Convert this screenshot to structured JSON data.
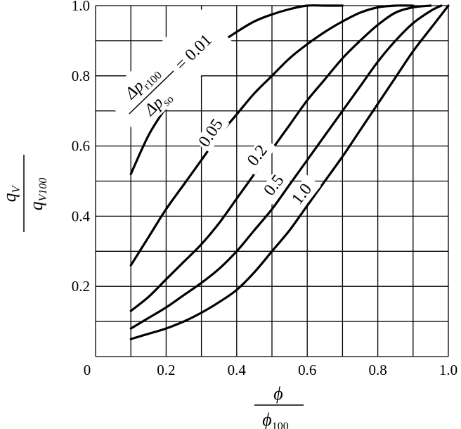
{
  "chart_data": {
    "type": "line",
    "title": "",
    "xlabel": {
      "numerator": "ϕ",
      "denominator": "ϕ",
      "denominator_sub": "100"
    },
    "ylabel": {
      "numerator": "q",
      "numerator_sub": "V",
      "denominator": "q",
      "denominator_sub": "V100"
    },
    "xlim": [
      0,
      1.0
    ],
    "ylim": [
      0,
      1.0
    ],
    "x_ticks": [
      0.2,
      0.4,
      0.6,
      0.8,
      1.0
    ],
    "x_tick_labels": [
      "0.2",
      "0.4",
      "0.6",
      "0.8",
      "1.0"
    ],
    "y_ticks": [
      0.2,
      0.4,
      0.6,
      0.8,
      1.0
    ],
    "y_tick_labels": [
      "0.2",
      "0.4",
      "0.6",
      "0.8",
      "1.0"
    ],
    "origin_label": "0",
    "grid": true,
    "grid_step": 0.1,
    "parameter_label": {
      "numerator": "Δp",
      "numerator_sub": "r100",
      "denominator": "Δp",
      "denominator_sub": "so",
      "eq": "= 0.01"
    },
    "series": [
      {
        "label": "0.01",
        "x": [
          0.1,
          0.15,
          0.2,
          0.25,
          0.3,
          0.35,
          0.4,
          0.45,
          0.5,
          0.55,
          0.6,
          0.65,
          0.7
        ],
        "y": [
          0.52,
          0.63,
          0.71,
          0.78,
          0.84,
          0.89,
          0.925,
          0.955,
          0.975,
          0.99,
          1.0,
          1.0,
          1.0
        ]
      },
      {
        "label": "0.05",
        "x": [
          0.1,
          0.15,
          0.2,
          0.25,
          0.3,
          0.35,
          0.4,
          0.45,
          0.5,
          0.55,
          0.6,
          0.65,
          0.7,
          0.75,
          0.8,
          0.85,
          0.9
        ],
        "y": [
          0.26,
          0.34,
          0.42,
          0.49,
          0.56,
          0.63,
          0.69,
          0.75,
          0.8,
          0.85,
          0.89,
          0.925,
          0.955,
          0.98,
          0.995,
          1.0,
          1.0
        ]
      },
      {
        "label": "0.2",
        "x": [
          0.1,
          0.15,
          0.2,
          0.25,
          0.3,
          0.35,
          0.4,
          0.45,
          0.5,
          0.55,
          0.6,
          0.65,
          0.7,
          0.75,
          0.8,
          0.85,
          0.9,
          0.95
        ],
        "y": [
          0.13,
          0.17,
          0.22,
          0.27,
          0.32,
          0.38,
          0.45,
          0.52,
          0.59,
          0.66,
          0.73,
          0.79,
          0.85,
          0.9,
          0.945,
          0.98,
          0.995,
          1.0
        ]
      },
      {
        "label": "0.5",
        "x": [
          0.1,
          0.15,
          0.2,
          0.25,
          0.3,
          0.35,
          0.4,
          0.45,
          0.5,
          0.55,
          0.6,
          0.65,
          0.7,
          0.75,
          0.8,
          0.85,
          0.9,
          0.95,
          0.98
        ],
        "y": [
          0.08,
          0.11,
          0.14,
          0.175,
          0.21,
          0.25,
          0.3,
          0.36,
          0.42,
          0.49,
          0.56,
          0.63,
          0.7,
          0.77,
          0.84,
          0.9,
          0.95,
          0.985,
          1.0
        ]
      },
      {
        "label": "1.0",
        "x": [
          0.1,
          0.15,
          0.2,
          0.25,
          0.3,
          0.35,
          0.4,
          0.45,
          0.5,
          0.55,
          0.6,
          0.65,
          0.7,
          0.75,
          0.8,
          0.85,
          0.9,
          0.95,
          1.0
        ],
        "y": [
          0.05,
          0.065,
          0.08,
          0.1,
          0.125,
          0.155,
          0.19,
          0.24,
          0.3,
          0.36,
          0.43,
          0.5,
          0.57,
          0.645,
          0.72,
          0.795,
          0.87,
          0.935,
          1.0
        ]
      }
    ]
  }
}
